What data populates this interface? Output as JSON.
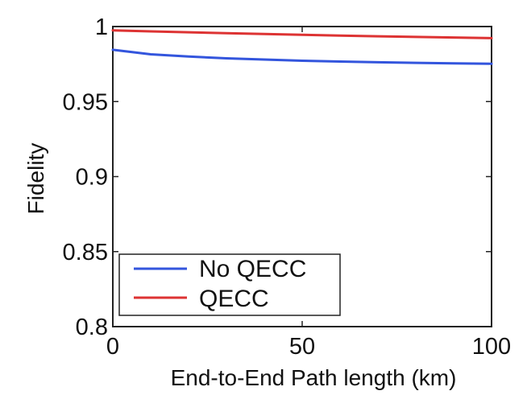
{
  "chart_data": {
    "type": "line",
    "xlabel": "End-to-End Path length (km)",
    "ylabel": "Fidelity",
    "xlim": [
      0,
      100
    ],
    "ylim": [
      0.8,
      1.0
    ],
    "x_ticks": [
      0,
      50,
      100
    ],
    "x_tick_labels": [
      "0",
      "50",
      "100"
    ],
    "y_ticks": [
      0.8,
      0.85,
      0.9,
      0.95,
      1.0
    ],
    "y_tick_labels": [
      "0.8",
      "0.85",
      "0.9",
      "0.95",
      "1"
    ],
    "grid": false,
    "legend_position": "bottom-left",
    "x": [
      0,
      10,
      20,
      30,
      40,
      50,
      60,
      70,
      80,
      90,
      100
    ],
    "series": [
      {
        "name": "No QECC",
        "color": "#3355dd",
        "values": [
          0.9845,
          0.9815,
          0.98,
          0.9788,
          0.978,
          0.9772,
          0.9767,
          0.9762,
          0.9758,
          0.9755,
          0.9752
        ]
      },
      {
        "name": "QECC",
        "color": "#dd3333",
        "values": [
          0.9975,
          0.9968,
          0.9962,
          0.9956,
          0.995,
          0.9945,
          0.994,
          0.9935,
          0.9931,
          0.9927,
          0.9923
        ]
      }
    ]
  }
}
